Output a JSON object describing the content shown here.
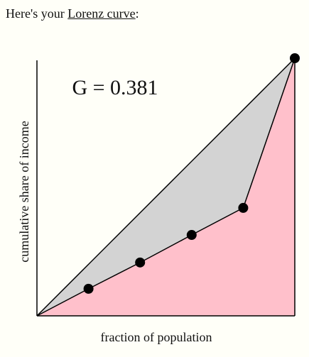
{
  "header": {
    "text": "Here's your ",
    "link": "Lorenz curve",
    "suffix": ":"
  },
  "chart_data": {
    "type": "lorenz",
    "annotation": "G = 0.381",
    "x_label": "fraction of population",
    "y_label": "cumulative share of income",
    "x": [
      0,
      0.2,
      0.4,
      0.6,
      0.8,
      1
    ],
    "y": [
      0,
      0.105,
      0.207,
      0.314,
      0.419,
      1
    ],
    "xlim": [
      0,
      1
    ],
    "ylim": [
      0,
      1
    ],
    "curve_fill": "#ffc0cb",
    "gap_fill": "#d3d3d3",
    "color": "#000000"
  }
}
